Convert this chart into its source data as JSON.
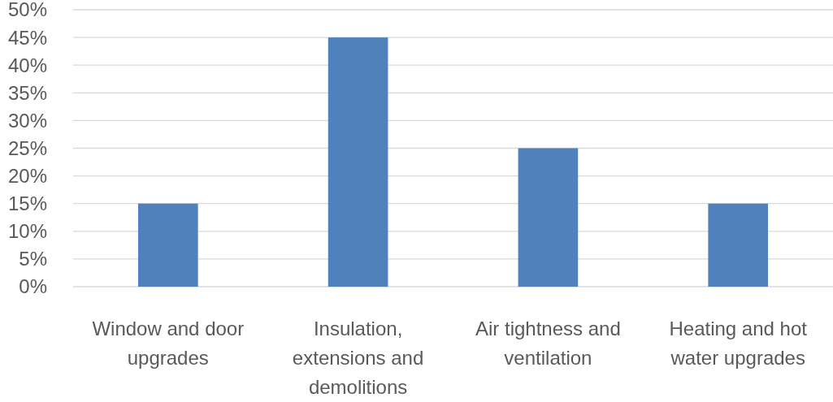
{
  "chart_data": {
    "type": "bar",
    "categories": [
      "Window and door upgrades",
      "Insulation, extensions and demolitions",
      "Air tightness and ventilation",
      "Heating and hot water upgrades"
    ],
    "values": [
      15,
      45,
      25,
      15
    ],
    "color": "#4f81bd",
    "ylim": [
      0,
      50
    ],
    "yticks": [
      {
        "value": 0,
        "label": "0%"
      },
      {
        "value": 5,
        "label": "5%"
      },
      {
        "value": 10,
        "label": "10%"
      },
      {
        "value": 15,
        "label": "15%"
      },
      {
        "value": 20,
        "label": "20%"
      },
      {
        "value": 25,
        "label": "25%"
      },
      {
        "value": 30,
        "label": "30%"
      },
      {
        "value": 35,
        "label": "35%"
      },
      {
        "value": 40,
        "label": "40%"
      },
      {
        "value": 45,
        "label": "45%"
      },
      {
        "value": 50,
        "label": "50%"
      }
    ],
    "grid": "y"
  }
}
